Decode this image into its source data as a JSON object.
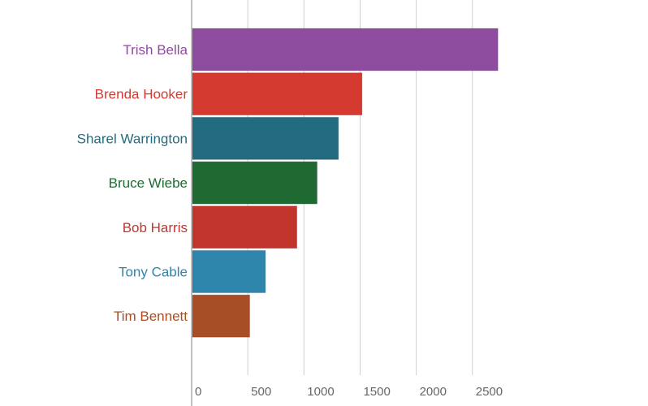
{
  "chart_data": {
    "type": "bar",
    "orientation": "horizontal",
    "title": "",
    "xlabel": "",
    "ylabel": "",
    "categories": [
      "Trish Bella",
      "Brenda Hooker",
      "Sharel Warrington",
      "Bruce Wiebe",
      "Bob Harris",
      "Tony Cable",
      "Tim Bennett"
    ],
    "values": [
      2720,
      1510,
      1300,
      1110,
      930,
      650,
      510
    ],
    "colors": [
      "#8e4c9e",
      "#d43a30",
      "#236c7f",
      "#1f6a33",
      "#c2352c",
      "#2e86ad",
      "#a84e26"
    ],
    "xlim": [
      0,
      2900
    ],
    "xticks": [
      0,
      500,
      1000,
      1500,
      2000,
      2500
    ],
    "xtick_labels": [
      "0",
      "500",
      "1000",
      "1500",
      "2000",
      "2500"
    ],
    "grid": true,
    "legend": "none"
  }
}
